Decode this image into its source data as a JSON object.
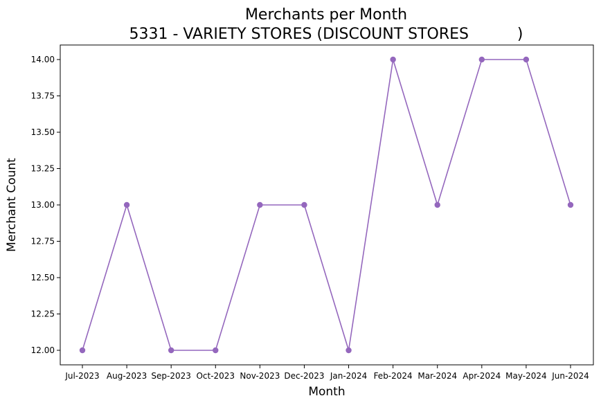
{
  "chart_data": {
    "type": "line",
    "title": "Merchants per Month",
    "subtitle": "5331 - VARIETY STORES (DISCOUNT STORES          )",
    "xlabel": "Month",
    "ylabel": "Merchant Count",
    "categories": [
      "Jul-2023",
      "Aug-2023",
      "Sep-2023",
      "Oct-2023",
      "Nov-2023",
      "Dec-2023",
      "Jan-2024",
      "Feb-2024",
      "Mar-2024",
      "Apr-2024",
      "May-2024",
      "Jun-2024"
    ],
    "series": [
      {
        "values": [
          12,
          13,
          12,
          12,
          13,
          13,
          12,
          14,
          13,
          14,
          14,
          13
        ],
        "color": "#9467bd"
      }
    ],
    "yticks": [
      "12.00",
      "12.25",
      "12.50",
      "12.75",
      "13.00",
      "13.25",
      "13.50",
      "13.75",
      "14.00"
    ],
    "ylim": [
      11.9,
      14.1
    ],
    "grid": false,
    "legend": "none",
    "marker": "circle"
  }
}
